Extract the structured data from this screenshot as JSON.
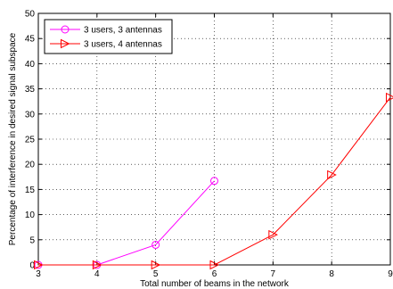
{
  "chart_data": {
    "type": "line",
    "xlabel": "Total number of beams in the network",
    "ylabel": "Percentage of interference in desired signal subspace",
    "xlim": [
      3,
      9
    ],
    "ylim": [
      0,
      50
    ],
    "xticks": [
      3,
      4,
      5,
      6,
      7,
      8,
      9
    ],
    "yticks": [
      0,
      5,
      10,
      15,
      20,
      25,
      30,
      35,
      40,
      45,
      50
    ],
    "grid": true,
    "grid_style": "dotted",
    "legend_position": "top-left",
    "series": [
      {
        "name": "3 users, 3 antennas",
        "color": "#ff00ff",
        "marker": "circle",
        "x": [
          3,
          4,
          5,
          6
        ],
        "y": [
          0,
          0,
          4,
          16.7
        ]
      },
      {
        "name": "3 users, 4 antennas",
        "color": "#ff0000",
        "marker": "triangle-right",
        "x": [
          3,
          4,
          5,
          6,
          7,
          8,
          9
        ],
        "y": [
          0,
          0,
          0,
          0,
          6,
          17.9,
          33.3
        ]
      }
    ]
  }
}
